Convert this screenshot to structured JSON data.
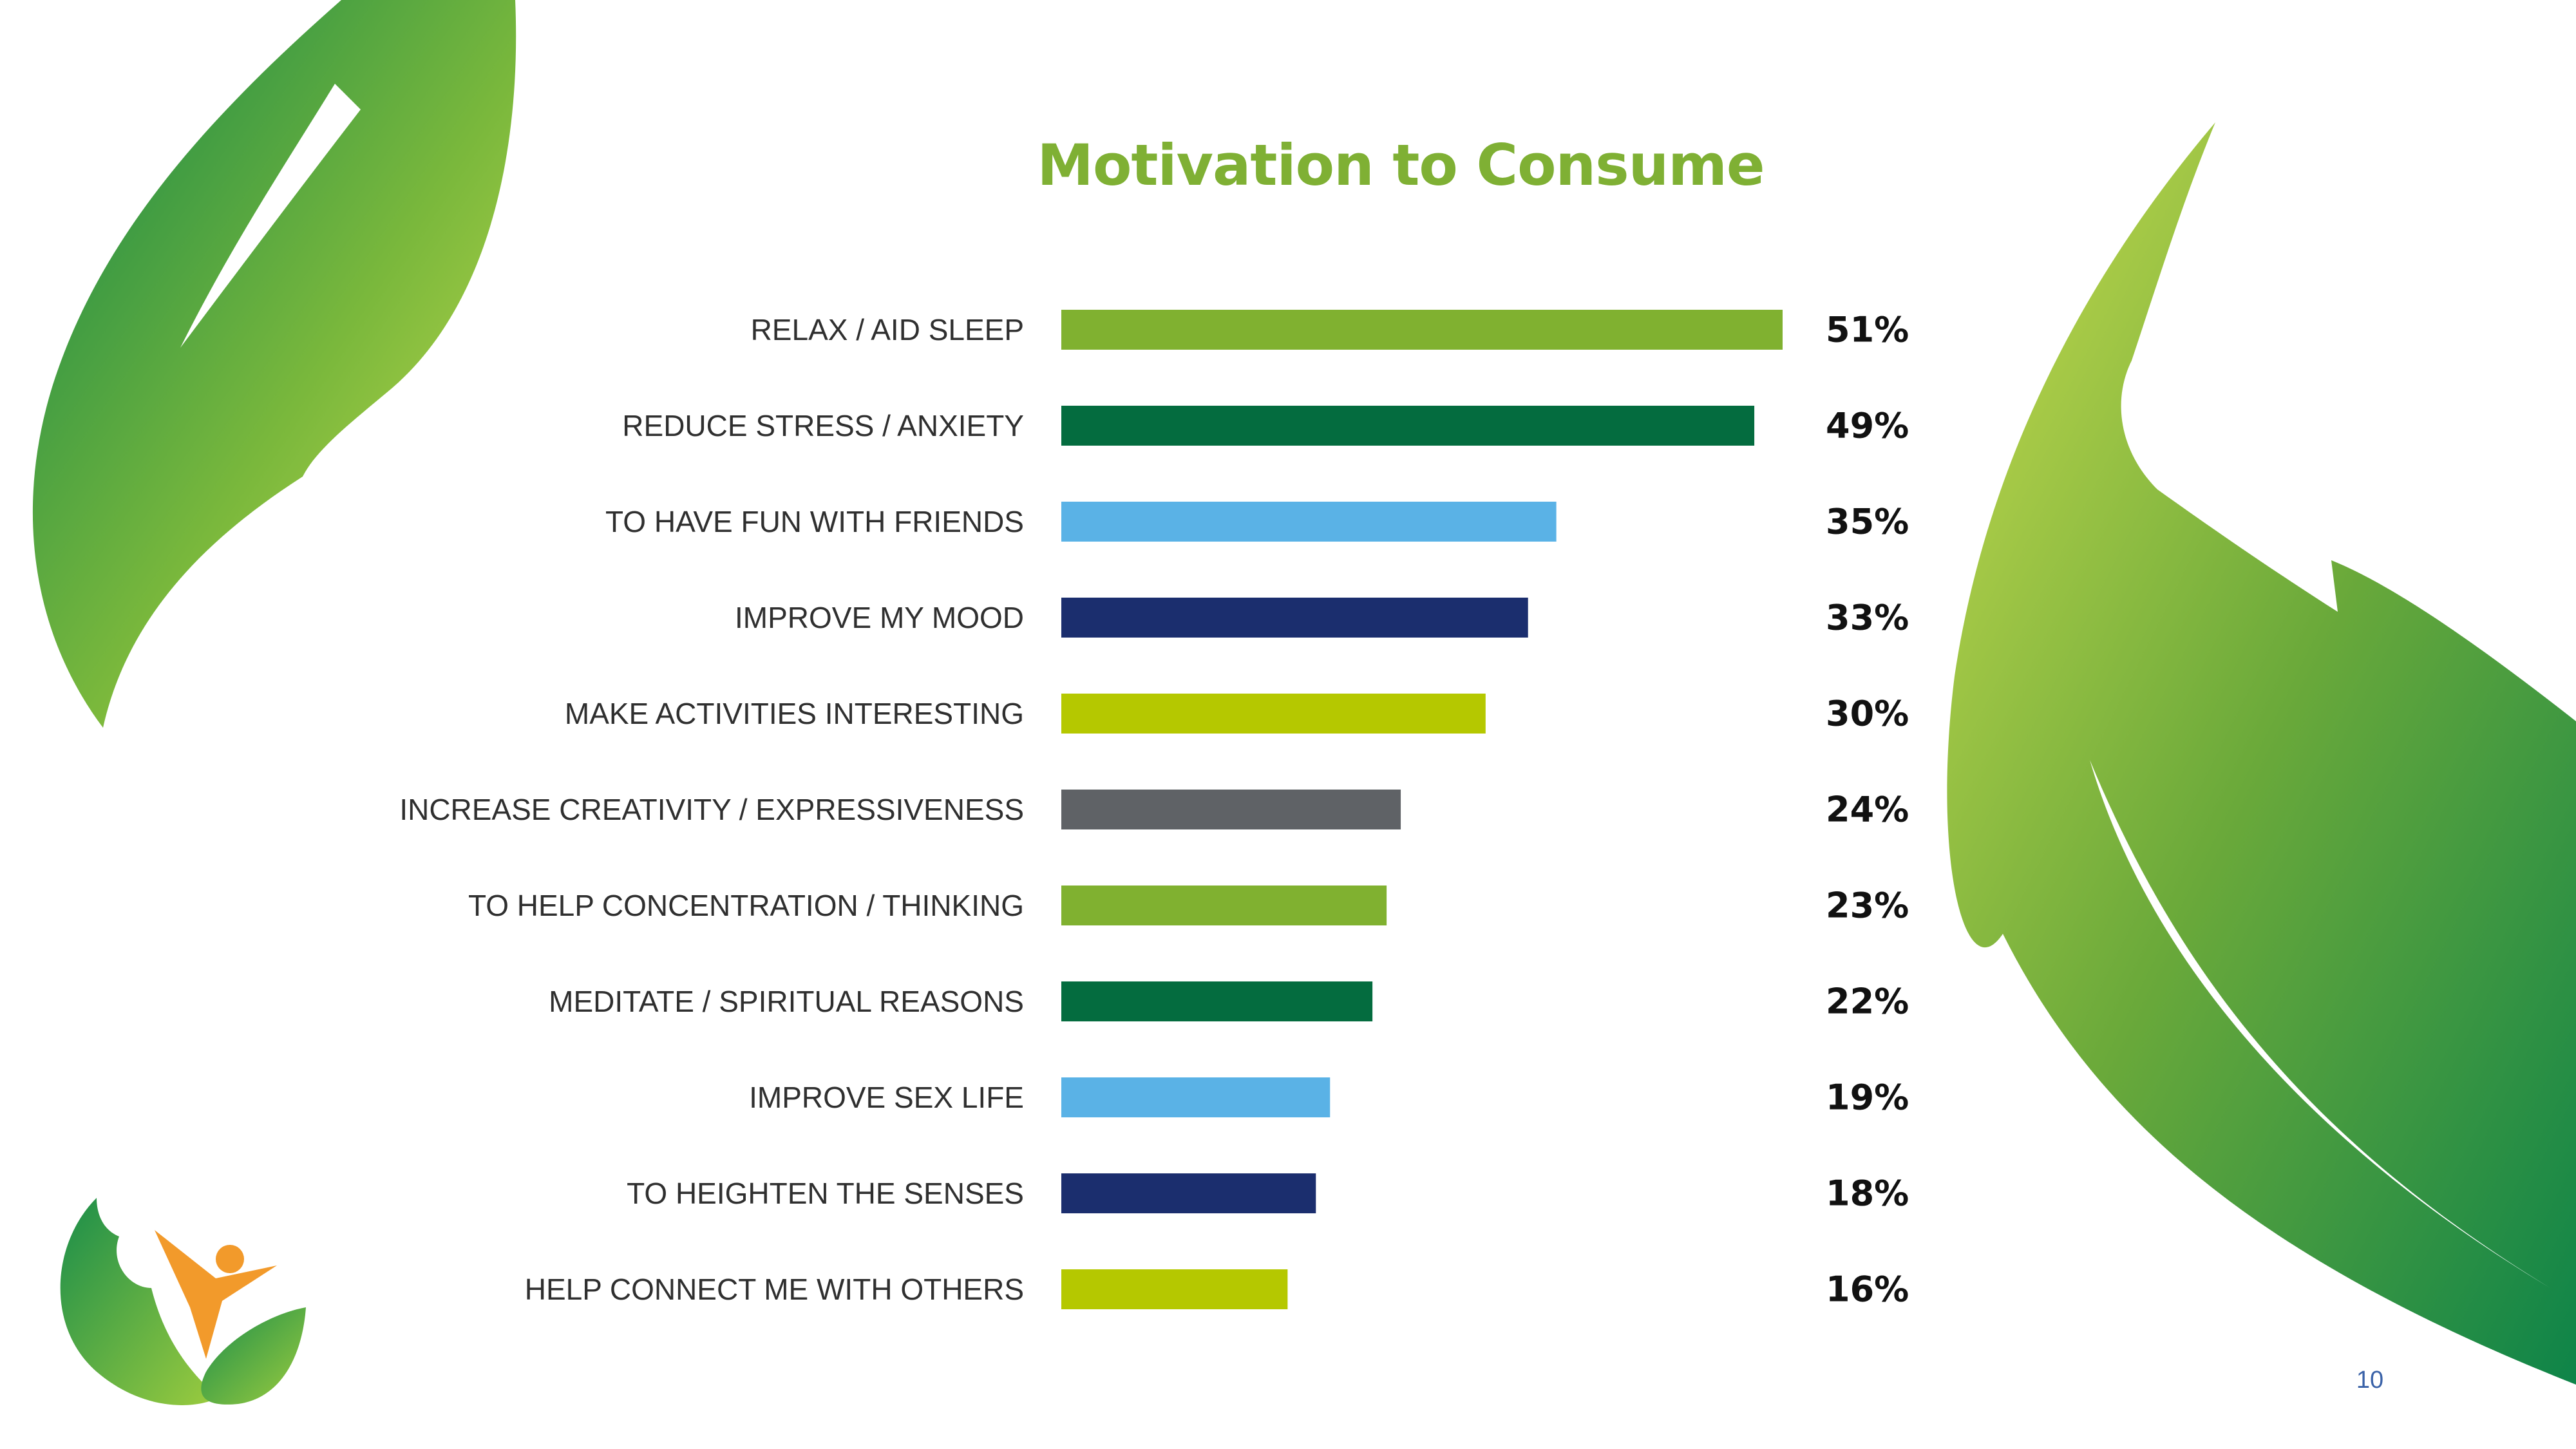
{
  "slide": {
    "title": "Motivation to Consume",
    "page_number": "10"
  },
  "decorations": {
    "top_left": "leaf-shape",
    "right": "leaf-shape",
    "bottom_left_logo": "leaf-person-logo"
  },
  "colors": {
    "title": "#7fb034",
    "label_text": "#2f2f2f",
    "value_text": "#111111"
  },
  "chart_data": {
    "type": "bar",
    "orientation": "horizontal",
    "title": "Motivation to Consume",
    "unit": "%",
    "xlim": [
      0,
      51
    ],
    "grid": false,
    "categories": [
      "RELAX / AID SLEEP",
      "REDUCE STRESS / ANXIETY",
      "TO HAVE FUN WITH FRIENDS",
      "IMPROVE MY MOOD",
      "MAKE ACTIVITIES INTERESTING",
      "INCREASE CREATIVITY / EXPRESSIVENESS",
      "TO HELP CONCENTRATION / THINKING",
      "MEDITATE / SPIRITUAL REASONS",
      "IMPROVE SEX LIFE",
      "TO HEIGHTEN THE SENSES",
      "HELP CONNECT ME WITH OTHERS"
    ],
    "values": [
      51,
      49,
      35,
      33,
      30,
      24,
      23,
      22,
      19,
      18,
      16
    ],
    "value_labels": [
      "51%",
      "49%",
      "35%",
      "33%",
      "30%",
      "24%",
      "23%",
      "22%",
      "19%",
      "18%",
      "16%"
    ],
    "bar_colors": [
      "#80b130",
      "#046c3f",
      "#5ab2e6",
      "#1b2e6e",
      "#b5c800",
      "#5f6266",
      "#80b130",
      "#046c3f",
      "#5ab2e6",
      "#1b2e6e",
      "#b5c800"
    ]
  }
}
